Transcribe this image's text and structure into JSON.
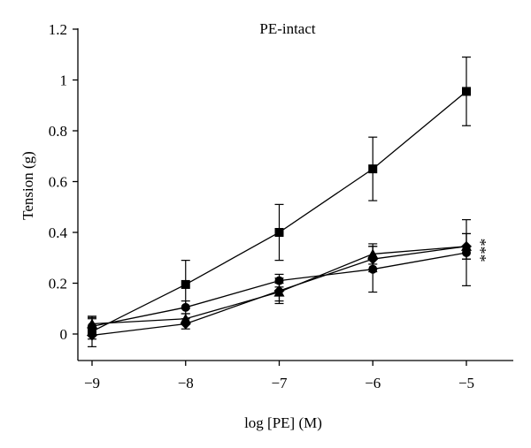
{
  "chart_data": {
    "type": "line",
    "title": "PE-intact",
    "xlabel": "log [PE] (M)",
    "ylabel": "Tension (g)",
    "x": [
      -9,
      -8,
      -7,
      -6,
      -5
    ],
    "xticks": [
      "−9",
      "−8",
      "−7",
      "−6",
      "−5"
    ],
    "yticks": [
      "0",
      "0.2",
      "0.4",
      "0.6",
      "0.8",
      "1",
      "1.2"
    ],
    "xlim": [
      -9,
      -5
    ],
    "ylim": [
      0,
      1.2
    ],
    "grid": false,
    "series": [
      {
        "marker": "square",
        "values": [
          0.01,
          0.195,
          0.4,
          0.65,
          0.955
        ],
        "err": [
          0.06,
          0.095,
          0.11,
          0.125,
          0.135
        ]
      },
      {
        "marker": "circle",
        "values": [
          0.03,
          0.105,
          0.21,
          0.255,
          0.32
        ],
        "err": [
          0.035,
          0.025,
          0.025,
          0.09,
          0.13
        ]
      },
      {
        "marker": "triangle",
        "values": [
          0.04,
          0.06,
          0.165,
          0.315,
          0.345
        ],
        "err": [
          0.02,
          0.02,
          0.035,
          0.04,
          0.05
        ]
      },
      {
        "marker": "diamond",
        "values": [
          -0.005,
          0.04,
          0.17,
          0.295,
          0.345
        ],
        "err": [
          0.015,
          0.02,
          0.05,
          0.05,
          0.05
        ]
      }
    ],
    "annotations": [
      {
        "text": "***",
        "x": -5,
        "y": 0.33
      }
    ]
  }
}
